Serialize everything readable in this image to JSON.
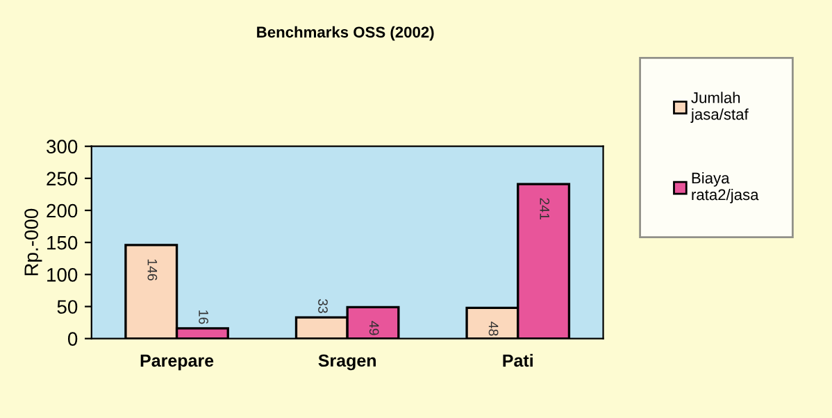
{
  "chart_data": {
    "type": "bar",
    "title": "Benchmarks OSS (2002)",
    "ylabel": "Rp.-000",
    "categories": [
      "Parepare",
      "Sragen",
      "Pati"
    ],
    "series": [
      {
        "name": "Jumlah\njasa/staf",
        "color": "#fbd8bc",
        "values": [
          146,
          33,
          48
        ]
      },
      {
        "name": "Biaya\nrata2/jasa",
        "color": "#e8559a",
        "values": [
          16,
          49,
          241
        ]
      }
    ],
    "ylim": [
      0,
      300
    ],
    "yticks": [
      0,
      50,
      100,
      150,
      200,
      250,
      300
    ],
    "data_labels": true,
    "legend": "right",
    "grid": false
  }
}
